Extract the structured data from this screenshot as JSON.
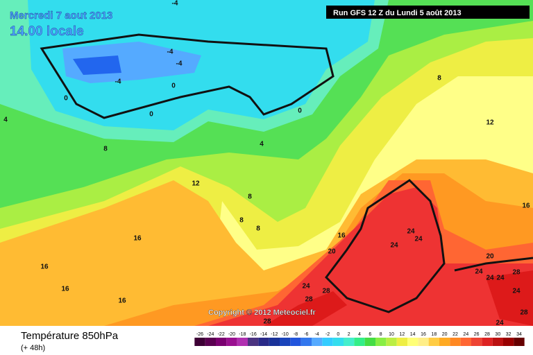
{
  "header": {
    "date": "Mercredi 7 aout 2013",
    "time": "14.00 locale",
    "run": "Run GFS 12 Z du Lundi 5 août 2013"
  },
  "copyright": "Copyright © 2012 Meteociel.fr",
  "footer": {
    "title": "Température 850hPa",
    "lead": "(+ 48h)"
  },
  "colorbar": {
    "values": [
      -26,
      -24,
      -22,
      -20,
      -18,
      -16,
      -14,
      -12,
      -10,
      -8,
      -6,
      -4,
      -2,
      0,
      2,
      4,
      6,
      8,
      10,
      12,
      14,
      16,
      18,
      20,
      22,
      24,
      26,
      28,
      30,
      32,
      34
    ],
    "colors": [
      "#3d0035",
      "#5a0050",
      "#7a0070",
      "#9a1090",
      "#b030b0",
      "#4b3380",
      "#2a2a88",
      "#1a3399",
      "#1a44bb",
      "#2255dd",
      "#3377ee",
      "#55aaff",
      "#33ccff",
      "#33ddee",
      "#44eecc",
      "#33ee88",
      "#44dd44",
      "#88ee44",
      "#bbee44",
      "#eeee44",
      "#ffff77",
      "#ffee88",
      "#ffcc44",
      "#ffaa22",
      "#ff8822",
      "#ff6633",
      "#ee4433",
      "#dd2222",
      "#bb1111",
      "#990000",
      "#660000"
    ]
  },
  "map": {
    "contour_labels": [
      "-4",
      "-4",
      "-4",
      "-4",
      "0",
      "0",
      "0",
      "0",
      "4",
      "4",
      "8",
      "8",
      "8",
      "8",
      "8",
      "12",
      "12",
      "16",
      "16",
      "16",
      "16",
      "16",
      "16",
      "20",
      "20",
      "24",
      "24",
      "24",
      "24",
      "24",
      "24",
      "24",
      "24",
      "24",
      "28",
      "28",
      "28",
      "28",
      "28"
    ]
  }
}
